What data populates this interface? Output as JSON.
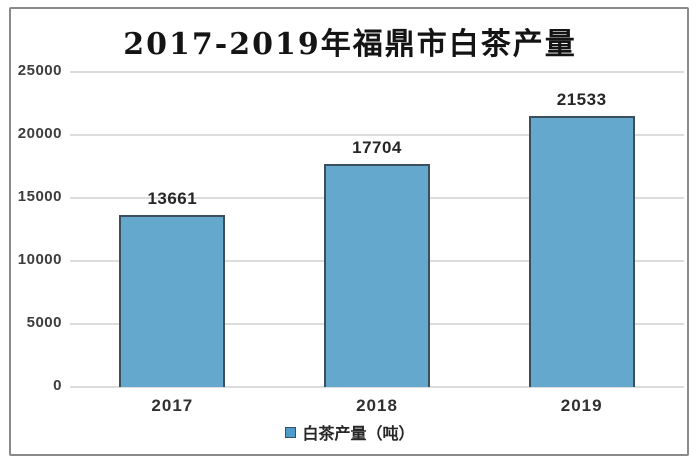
{
  "title": "2017-2019年福鼎市白茶产量",
  "chart_data": {
    "type": "bar",
    "title": "2017-2019年福鼎市白茶产量",
    "categories": [
      "2017",
      "2018",
      "2019"
    ],
    "values": [
      13661,
      17704,
      21533
    ],
    "xlabel": "",
    "ylabel": "",
    "ylim": [
      0,
      25000
    ],
    "yticks": [
      0,
      5000,
      10000,
      15000,
      20000,
      25000
    ],
    "grid": true,
    "data_labels": true,
    "legend": {
      "label": "白茶产量（吨）",
      "position": "bottom"
    }
  },
  "colors": {
    "bar_fill": "#64a8ce",
    "bar_border": "#3c4f5c",
    "gridline": "#dcdcdc",
    "frame_border": "#8a8a8a",
    "title_text": "#141414",
    "tick_text": "#3d3d3d",
    "label_text": "#262626",
    "legend_swatch": "#4e9bcb",
    "background": "#ffffff"
  }
}
